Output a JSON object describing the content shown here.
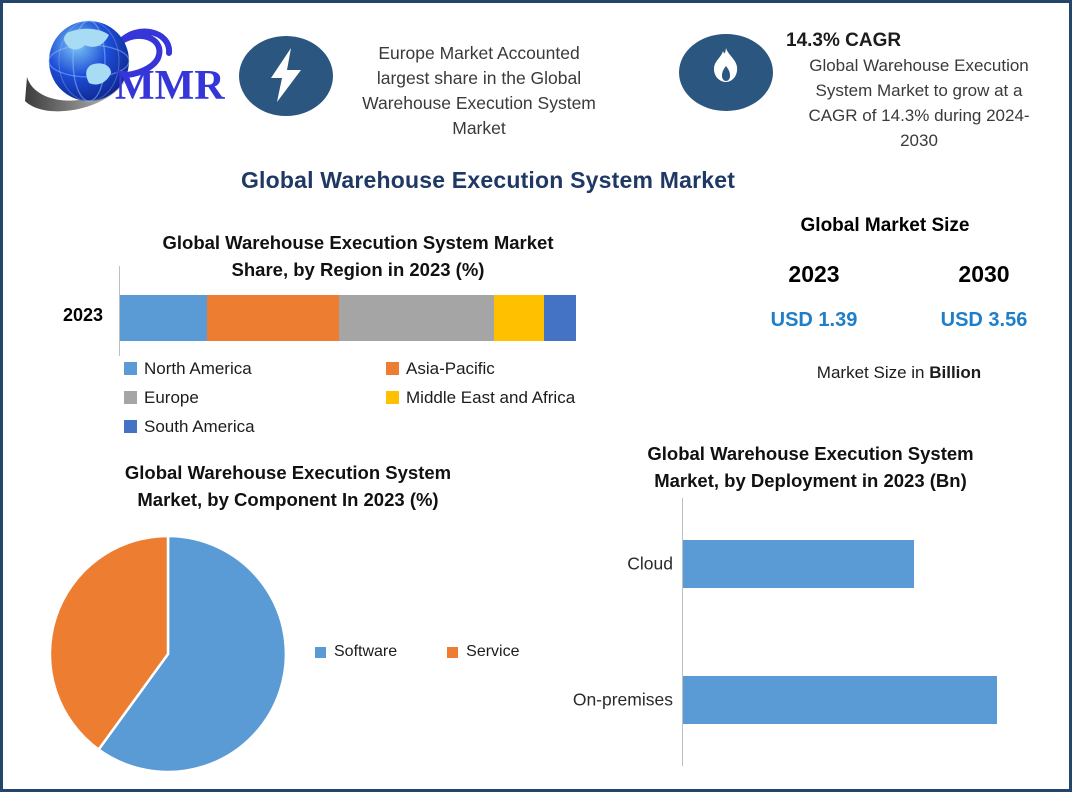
{
  "page": {
    "border_color": "#24466B",
    "background": "#FFFFFF"
  },
  "brand": {
    "logo_text": "MMR",
    "logo_color": "#3636D8"
  },
  "colors": {
    "accent_navy": "#1F3864",
    "callout_icon_bg": "#2A5680",
    "value_blue": "#1E7EC8",
    "axis_gray": "#BFBFBF"
  },
  "callouts": {
    "europe": {
      "icon": "lightning-bolt",
      "lines": [
        "Europe Market Accounted",
        "largest share in the Global",
        "Warehouse Execution System",
        "Market"
      ]
    },
    "cagr": {
      "icon": "flame",
      "headline": "14.3% CAGR",
      "lines": [
        "Global Warehouse Execution",
        "System Market to grow at a",
        "CAGR of 14.3% during 2024-",
        "2030"
      ]
    }
  },
  "main_title": "Global Warehouse Execution System Market",
  "market_size": {
    "title": "Global Market Size",
    "columns": [
      {
        "year": "2023",
        "value": "USD 1.39"
      },
      {
        "year": "2030",
        "value": "USD 3.56"
      }
    ],
    "caption_prefix": "Market Size in ",
    "caption_bold": "Billion"
  },
  "chart_data": [
    {
      "id": "region_share",
      "type": "bar",
      "subtype": "horizontal-stacked",
      "title_line1": "Global Warehouse Execution System Market",
      "title_line2": "Share, by Region in 2023 (%)",
      "categories": [
        "2023"
      ],
      "unit": "%",
      "xlim": [
        0,
        100
      ],
      "legend_position": "bottom",
      "series": [
        {
          "name": "North America",
          "value": 19,
          "color": "#5B9BD5"
        },
        {
          "name": "Asia-Pacific",
          "value": 29,
          "color": "#ED7D31"
        },
        {
          "name": "Europe",
          "value": 34,
          "color": "#A5A5A5"
        },
        {
          "name": "Middle East and Africa",
          "value": 11,
          "color": "#FFC000"
        },
        {
          "name": "South America",
          "value": 7,
          "color": "#4472C4"
        }
      ]
    },
    {
      "id": "component_split",
      "type": "pie",
      "title_line1": "Global Warehouse Execution System",
      "title_line2": "Market, by Component  In 2023 (%)",
      "unit": "%",
      "start_angle_deg": 0,
      "legend_position": "right",
      "slices": [
        {
          "name": "Software",
          "value": 60,
          "color": "#5B9BD5"
        },
        {
          "name": "Service",
          "value": 40,
          "color": "#ED7D31"
        }
      ]
    },
    {
      "id": "deployment",
      "type": "bar",
      "subtype": "horizontal",
      "title_line1": "Global Warehouse Execution System",
      "title_line2": "Market, by Deployment in 2023 (Bn)",
      "categories": [
        "Cloud",
        "On-premises"
      ],
      "values": [
        0.59,
        0.8
      ],
      "unit": "Bn",
      "xlim": [
        0,
        0.88
      ],
      "bar_color": "#5B9BD5",
      "grid": false
    }
  ]
}
